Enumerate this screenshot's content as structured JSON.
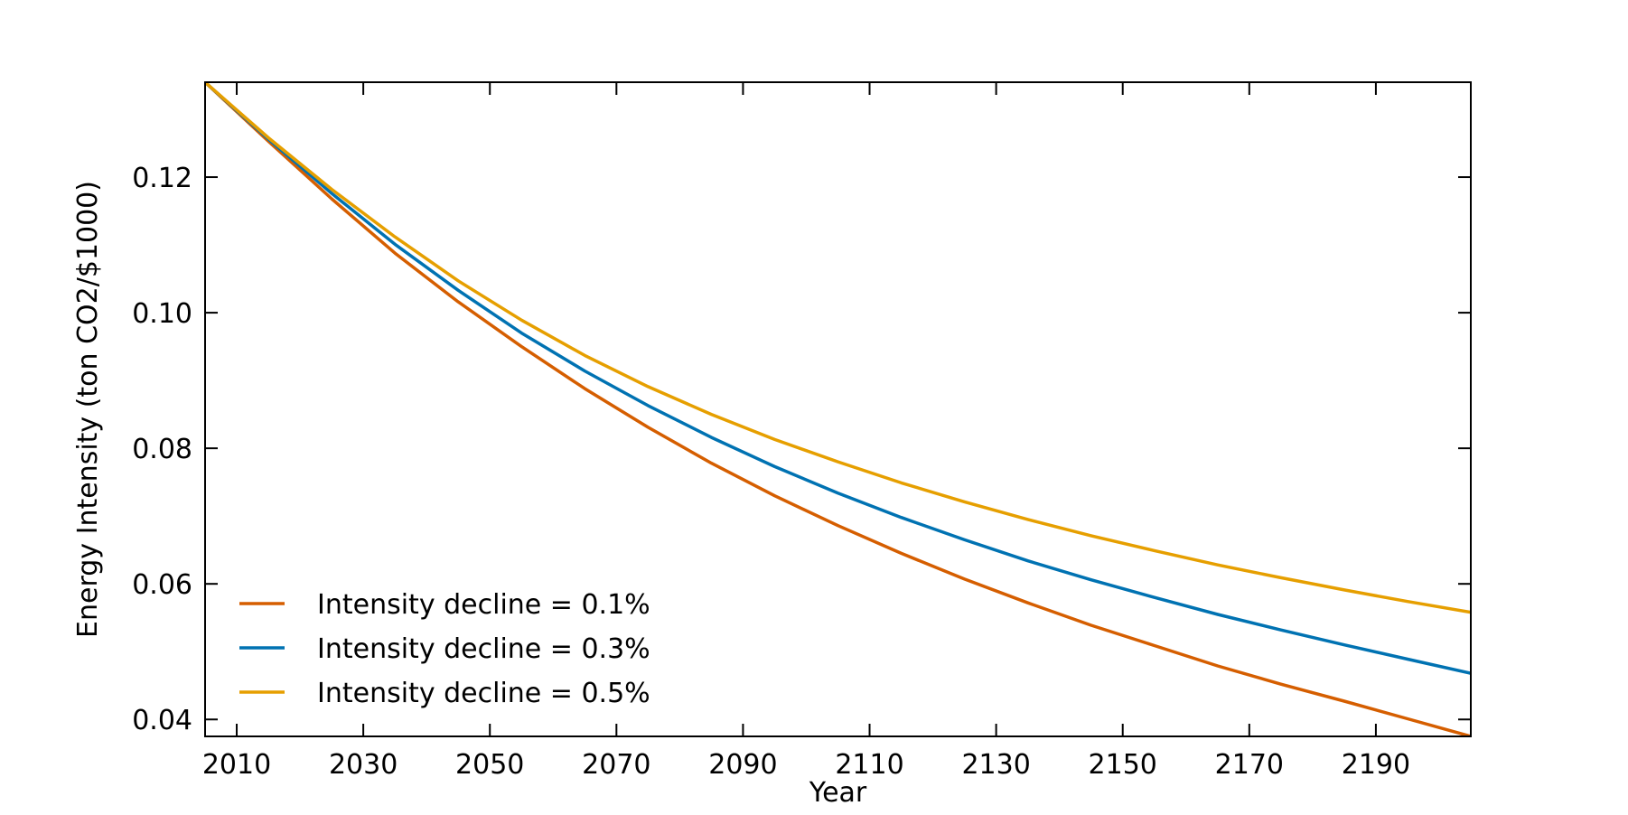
{
  "chart_data": {
    "type": "line",
    "title": "",
    "xlabel": "Year",
    "ylabel": "Energy Intensity (ton CO2/$1000)",
    "xlim": [
      2005,
      2205
    ],
    "ylim": [
      0.0375,
      0.134
    ],
    "x_ticks": [
      2010,
      2030,
      2050,
      2070,
      2090,
      2110,
      2130,
      2150,
      2170,
      2190
    ],
    "y_ticks": [
      0.04,
      0.06,
      0.08,
      0.1,
      0.12
    ],
    "y_tick_labels": [
      "0.04",
      "0.06",
      "0.08",
      "0.10",
      "0.12"
    ],
    "grid": false,
    "legend_position": "lower-left",
    "series": [
      {
        "name": "Intensity decline = 0.1%",
        "color": "#d55e00",
        "x": [
          2005,
          2015,
          2025,
          2035,
          2045,
          2055,
          2065,
          2075,
          2085,
          2095,
          2105,
          2115,
          2125,
          2135,
          2145,
          2155,
          2165,
          2175,
          2185,
          2195,
          2205
        ],
        "y": [
          0.134,
          0.1253,
          0.1168,
          0.1088,
          0.1016,
          0.095,
          0.0888,
          0.0831,
          0.0778,
          0.073,
          0.0686,
          0.0645,
          0.0607,
          0.0572,
          0.0539,
          0.0509,
          0.0479,
          0.0452,
          0.0427,
          0.0401,
          0.0375
        ]
      },
      {
        "name": "Intensity decline = 0.3%",
        "color": "#0072b2",
        "x": [
          2005,
          2015,
          2025,
          2035,
          2045,
          2055,
          2065,
          2075,
          2085,
          2095,
          2105,
          2115,
          2125,
          2135,
          2145,
          2155,
          2165,
          2175,
          2185,
          2195,
          2205
        ],
        "y": [
          0.134,
          0.1256,
          0.1176,
          0.1101,
          0.1033,
          0.097,
          0.0914,
          0.0863,
          0.0816,
          0.0773,
          0.0734,
          0.0698,
          0.0665,
          0.0634,
          0.0606,
          0.058,
          0.0555,
          0.0532,
          0.051,
          0.0489,
          0.0468
        ]
      },
      {
        "name": "Intensity decline = 0.5%",
        "color": "#e69f00",
        "x": [
          2005,
          2015,
          2025,
          2035,
          2045,
          2055,
          2065,
          2075,
          2085,
          2095,
          2105,
          2115,
          2125,
          2135,
          2145,
          2155,
          2165,
          2175,
          2185,
          2195,
          2205
        ],
        "y": [
          0.134,
          0.1258,
          0.1182,
          0.1112,
          0.1047,
          0.0989,
          0.0937,
          0.0891,
          0.085,
          0.0813,
          0.078,
          0.0749,
          0.0721,
          0.0695,
          0.0671,
          0.0649,
          0.0628,
          0.0609,
          0.0591,
          0.0574,
          0.0558
        ]
      }
    ]
  }
}
